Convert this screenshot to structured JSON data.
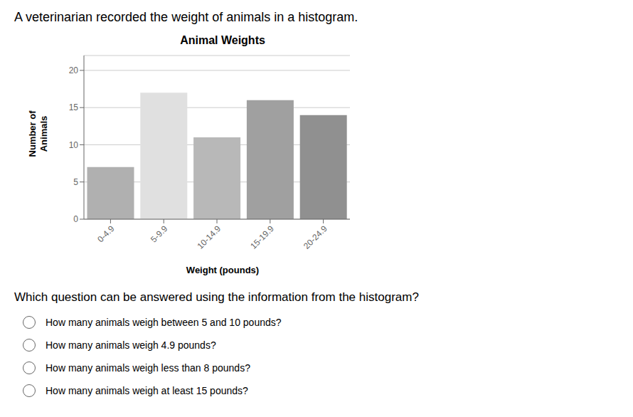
{
  "chart_data": {
    "type": "bar",
    "title": "Animal Weights",
    "xlabel": "Weight (pounds)",
    "ylabel": "Number of\nAnimals",
    "categories": [
      "0-4.9",
      "5-9.9",
      "10-14.9",
      "15-19.9",
      "20-24.9"
    ],
    "values": [
      7,
      17,
      11,
      16,
      14
    ],
    "colors": [
      "#b0b0b0",
      "#e0e0e0",
      "#b8b8b8",
      "#a0a0a0",
      "#909090"
    ],
    "ylim": [
      0,
      22
    ],
    "yticks": [
      0,
      5,
      10,
      15,
      20
    ],
    "grid": true,
    "annotations": [
      "A veterinarian recorded the weight of animals in a histogram.",
      "Which question can be answered using the information from the histogram?",
      "How many animals weigh between 5 and 10 pounds?",
      "How many animals weigh 4.9 pounds?",
      "How many animals weigh less than 8 pounds?",
      "How many animals weigh at least 15 pounds?"
    ]
  }
}
